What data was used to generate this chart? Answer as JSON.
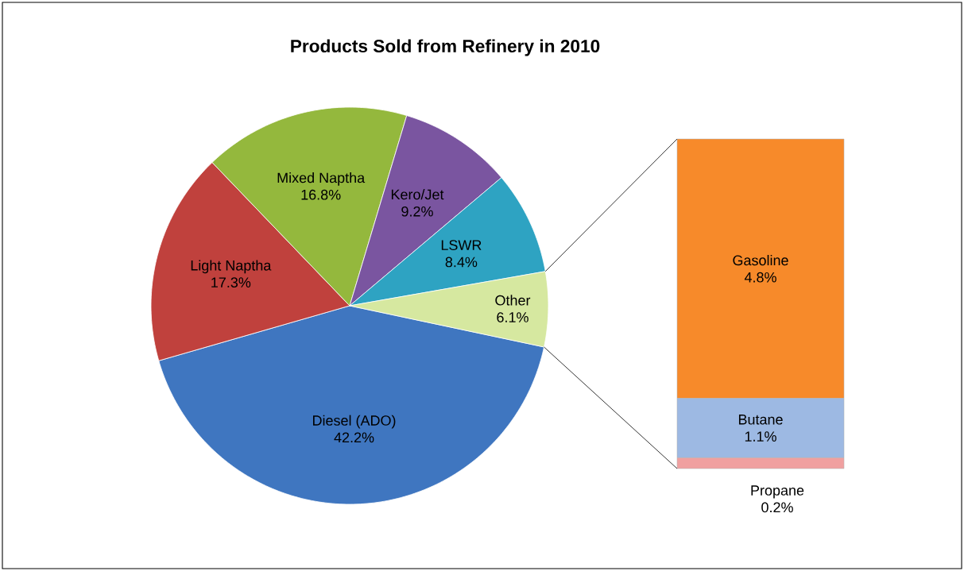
{
  "chart_data": [
    {
      "type": "pie",
      "title": "Products Sold from Refinery in 2010",
      "categories": [
        "Diesel (ADO)",
        "Light Naptha",
        "Mixed Naptha",
        "Kero/Jet",
        "LSWR",
        "Other"
      ],
      "values": [
        42.2,
        17.3,
        16.8,
        9.2,
        8.4,
        6.1
      ],
      "colors": [
        "#3f76c0",
        "#c0413d",
        "#94b83d",
        "#7a55a0",
        "#2ea3c2",
        "#d6e8a0"
      ],
      "value_labels": [
        "42.2%",
        "17.3%",
        "16.8%",
        "9.2%",
        "8.4%",
        "6.1%"
      ]
    },
    {
      "type": "bar",
      "stacked": true,
      "categories": [
        null
      ],
      "series": [
        {
          "name": "Propane",
          "color": "#f0a0a0",
          "values": [
            0.2
          ],
          "value_labels": [
            "0.2%"
          ]
        },
        {
          "name": "Butane",
          "color": "#9db9e3",
          "values": [
            1.1
          ],
          "value_labels": [
            "1.1%"
          ]
        },
        {
          "name": "Gasoline",
          "color": "#f78a2a",
          "values": [
            4.8
          ],
          "value_labels": [
            "4.8%"
          ]
        }
      ]
    }
  ]
}
